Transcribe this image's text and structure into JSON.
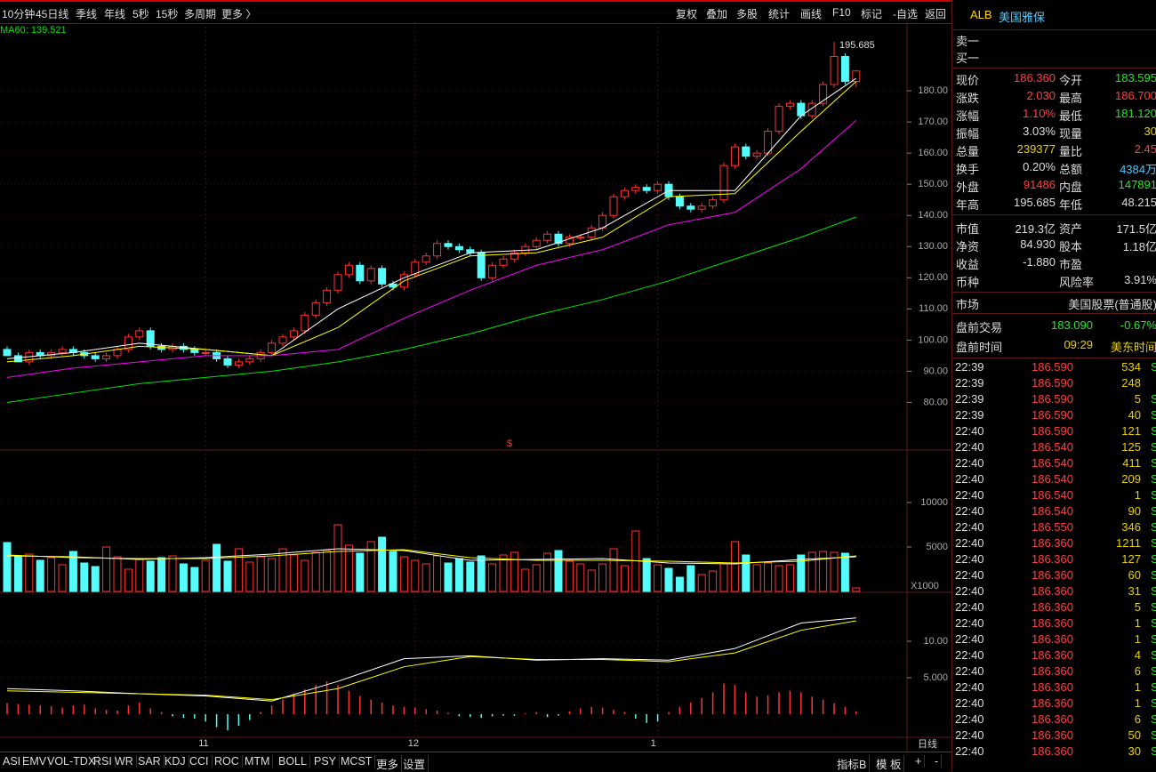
{
  "toolbar": {
    "left": [
      "10分钟",
      "45日线",
      "季线",
      "年线",
      "5秒",
      "15秒",
      "多周期",
      "更多 〉"
    ],
    "right": [
      "复权",
      "叠加",
      "多股",
      "统计",
      "画线",
      "F10",
      "标记",
      "-自选",
      "返回"
    ]
  },
  "bottom_toolbar": {
    "left": [
      "ASI",
      "EMV",
      "VOL-TDX",
      "RSI",
      "WR",
      "SAR",
      "KDJ",
      "CCI",
      "ROC",
      "MTM",
      "BOLL",
      "PSY",
      "MCST",
      "更多",
      "设置"
    ],
    "right": [
      "指标B",
      "模 板",
      "+",
      "-"
    ]
  },
  "period_label": "日线",
  "chart_data": [
    {
      "type": "candlestick",
      "legend": "MA60: 139.521",
      "marker": "$",
      "up_color": "#ff3232",
      "down_color": "#54fcfc",
      "open": [
        97,
        95,
        93,
        96,
        95,
        96,
        97,
        96,
        95,
        94,
        95,
        97,
        101,
        103,
        98,
        97,
        98,
        97,
        96,
        96,
        94,
        92,
        93,
        94,
        96,
        99,
        101,
        103,
        108,
        112,
        116,
        121,
        124,
        119,
        123,
        118,
        117,
        121,
        125,
        127,
        131,
        130,
        129,
        128,
        120,
        124,
        126,
        128,
        130,
        132,
        134,
        131,
        133,
        133,
        136,
        140,
        146,
        148,
        149,
        148,
        150,
        146,
        143,
        142,
        143,
        145,
        156,
        162,
        159,
        160,
        167,
        175,
        176,
        172,
        176,
        182,
        191,
        183
      ],
      "high": [
        98,
        96,
        97,
        97,
        97,
        98,
        98,
        97,
        96,
        96,
        98,
        102,
        104,
        104,
        99,
        99,
        99,
        98,
        97,
        97,
        95,
        94,
        95,
        97,
        100,
        102,
        104,
        109,
        113,
        117,
        122,
        125,
        125,
        124,
        124,
        119,
        122,
        126,
        128,
        132,
        132,
        131,
        130,
        129,
        125,
        127,
        129,
        131,
        133,
        135,
        135,
        134,
        134,
        137,
        141,
        147,
        149,
        150,
        150,
        151,
        151,
        147,
        144,
        144,
        146,
        157,
        163,
        163,
        161,
        168,
        176,
        177,
        177,
        177,
        183,
        195.685,
        192,
        186.7
      ],
      "low": [
        96,
        94,
        92,
        94,
        94,
        95,
        95,
        94,
        93,
        93,
        94,
        96,
        100,
        97,
        96,
        96,
        96,
        95,
        95,
        93,
        91,
        91,
        92,
        93,
        95,
        98,
        100,
        102,
        107,
        111,
        115,
        120,
        118,
        118,
        117,
        116,
        116,
        120,
        124,
        126,
        129,
        128,
        127,
        119,
        119,
        123,
        125,
        127,
        129,
        131,
        130,
        130,
        132,
        132,
        135,
        139,
        145,
        147,
        147,
        147,
        145,
        142,
        141,
        141,
        142,
        144,
        155,
        158,
        158,
        159,
        166,
        174,
        171,
        171,
        175,
        181,
        182,
        181.12
      ],
      "close": [
        95,
        93,
        96,
        95,
        96,
        97,
        96,
        95,
        94,
        95,
        97,
        101,
        103,
        98,
        97,
        98,
        97,
        96,
        96,
        94,
        92,
        93,
        94,
        96,
        99,
        101,
        103,
        108,
        112,
        116,
        121,
        124,
        119,
        123,
        118,
        117,
        121,
        125,
        127,
        131,
        130,
        129,
        128,
        120,
        124,
        126,
        128,
        130,
        132,
        134,
        131,
        133,
        133,
        136,
        140,
        146,
        148,
        149,
        148,
        150,
        146,
        143,
        142,
        143,
        145,
        156,
        162,
        159,
        160,
        167,
        175,
        176,
        172,
        176,
        182,
        191,
        183,
        186.36
      ],
      "ylim": [
        65,
        202
      ],
      "yticks": [
        {
          "value": 80,
          "label": "80.00"
        },
        {
          "value": 90,
          "label": "90.00"
        },
        {
          "value": 100,
          "label": "100.00"
        },
        {
          "value": 110,
          "label": "110.00"
        },
        {
          "value": 120,
          "label": "120.00"
        },
        {
          "value": 130,
          "label": "130.00"
        },
        {
          "value": 140,
          "label": "140.00"
        },
        {
          "value": 150,
          "label": "150.00"
        },
        {
          "value": 160,
          "label": "160.00"
        },
        {
          "value": 170,
          "label": "170.00"
        },
        {
          "value": 180,
          "label": "180.00"
        }
      ],
      "xticks": [
        {
          "value": 18,
          "label": "11"
        },
        {
          "value": 37,
          "label": "12"
        },
        {
          "value": 59,
          "label": "1"
        }
      ],
      "lines": [
        {
          "color": "#ffffff",
          "x": [
            0,
            6,
            12,
            18,
            24,
            30,
            36,
            42,
            48,
            54,
            60,
            66,
            72,
            77
          ],
          "values": [
            94,
            96,
            99,
            97,
            95,
            110,
            120,
            128,
            129,
            136,
            148,
            148,
            172,
            184
          ]
        },
        {
          "color": "#ffff00",
          "x": [
            0,
            6,
            12,
            18,
            24,
            30,
            36,
            42,
            48,
            54,
            60,
            66,
            72,
            77
          ],
          "values": [
            93,
            95,
            98,
            97,
            95,
            104,
            119,
            127,
            128,
            133,
            146,
            147,
            167,
            183
          ]
        },
        {
          "color": "#ff00ff",
          "x": [
            0,
            6,
            12,
            18,
            24,
            30,
            36,
            42,
            48,
            54,
            60,
            66,
            72,
            77
          ],
          "values": [
            88,
            91,
            93,
            95,
            95,
            97,
            107,
            116,
            124,
            129,
            137,
            141,
            155,
            170.5
          ]
        },
        {
          "color": "#00e600",
          "x": [
            0,
            6,
            12,
            18,
            24,
            30,
            36,
            42,
            48,
            54,
            60,
            66,
            72,
            77
          ],
          "values": [
            80,
            83,
            86,
            88,
            90,
            93,
            97,
            102,
            108,
            113,
            119,
            126,
            133,
            139.521
          ]
        }
      ]
    },
    {
      "type": "bar",
      "unit_label": "X1000",
      "values": [
        5500,
        4000,
        4200,
        3500,
        3800,
        3000,
        4500,
        3200,
        2800,
        5000,
        3900,
        2500,
        3600,
        3400,
        3800,
        4000,
        3100,
        2700,
        3500,
        5300,
        3400,
        4800,
        3300,
        3900,
        3700,
        4800,
        4100,
        3500,
        4400,
        4600,
        7500,
        5200,
        4300,
        5600,
        6100,
        4500,
        3900,
        3500,
        3100,
        4000,
        3200,
        3700,
        3300,
        4000,
        3100,
        4100,
        4400,
        2500,
        3000,
        4300,
        4600,
        3400,
        3100,
        2400,
        3100,
        4800,
        2900,
        6800,
        3700,
        3000,
        2600,
        1600,
        2900,
        1900,
        2300,
        3100,
        5600,
        4100,
        3000,
        3200,
        2900,
        3000,
        4100,
        4400,
        4500,
        4400,
        4300,
        400
      ],
      "ylim": [
        0,
        15800
      ],
      "yticks": [
        5000,
        10000
      ],
      "lines": [
        {
          "color": "#ffffff",
          "x": [
            0,
            6,
            12,
            18,
            24,
            30,
            36,
            42,
            48,
            54,
            60,
            66,
            72,
            77
          ],
          "values": [
            4000,
            3900,
            3600,
            3800,
            4200,
            4800,
            4600,
            3500,
            3600,
            3700,
            3200,
            3100,
            3600,
            3900
          ]
        },
        {
          "color": "#ffff00",
          "x": [
            0,
            6,
            12,
            18,
            24,
            30,
            36,
            42,
            48,
            54,
            60,
            66,
            72,
            77
          ],
          "values": [
            4100,
            3800,
            3700,
            3700,
            4000,
            4500,
            4700,
            3800,
            3500,
            3500,
            3400,
            3200,
            3400,
            4000
          ]
        }
      ]
    },
    {
      "type": "macd",
      "pos_color": "#ff3232",
      "neg_color": "#54fcfc",
      "values": [
        1.5,
        1.4,
        1.3,
        1.2,
        1.1,
        0.9,
        1.2,
        1.3,
        0.8,
        0.6,
        0.5,
        1.2,
        1.6,
        0.8,
        0.3,
        -0.3,
        -0.5,
        -0.6,
        -1.0,
        -1.8,
        -2.2,
        -1.6,
        -0.8,
        0.3,
        1.2,
        2.0,
        2.8,
        3.4,
        4.0,
        4.5,
        4.0,
        3.2,
        2.5,
        2.0,
        1.6,
        1.2,
        1.0,
        0.9,
        0.7,
        0.5,
        0.2,
        -0.3,
        -0.4,
        -0.5,
        -0.3,
        -0.2,
        -0.2,
        0.1,
        0.3,
        -0.4,
        -0.2,
        0.4,
        0.8,
        1.0,
        0.9,
        0.6,
        0.3,
        -0.6,
        -1.2,
        -1.0,
        0.3,
        1.0,
        1.6,
        2.2,
        3.0,
        4.2,
        4.0,
        3.0,
        2.4,
        2.6,
        3.0,
        3.2,
        3.0,
        2.4,
        2.0,
        1.5,
        1.0,
        0.4
      ],
      "ylim": [
        -3.05,
        16.46
      ],
      "yticks": [
        {
          "value": 5,
          "label": "5.000"
        },
        {
          "value": 10,
          "label": "10.00"
        }
      ],
      "lines": [
        {
          "color": "#ffffff",
          "x": [
            0,
            6,
            12,
            18,
            24,
            30,
            36,
            42,
            48,
            54,
            60,
            66,
            72,
            77
          ],
          "values": [
            3.5,
            3.2,
            2.8,
            2.5,
            1.8,
            4.5,
            7.6,
            8.0,
            7.4,
            7.6,
            7.4,
            9.0,
            12.5,
            13.2
          ]
        },
        {
          "color": "#ffff00",
          "x": [
            0,
            6,
            12,
            18,
            24,
            30,
            36,
            42,
            48,
            54,
            60,
            66,
            72,
            77
          ],
          "values": [
            3.2,
            3.0,
            2.8,
            2.6,
            2.0,
            3.5,
            6.5,
            7.9,
            7.5,
            7.5,
            7.2,
            8.4,
            11.5,
            12.8
          ]
        }
      ]
    }
  ],
  "quote": {
    "symbol": "ALB",
    "name": "美国雅保",
    "sell": "卖一",
    "buy": "买一",
    "rows": [
      [
        "现价",
        "186.360",
        "今开",
        "183.595"
      ],
      [
        "涨跌",
        "2.030",
        "最高",
        "186.700"
      ],
      [
        "涨幅",
        "1.10%",
        "最低",
        "181.120"
      ],
      [
        "振幅",
        "3.03%",
        "现量",
        "30"
      ],
      [
        "总量",
        "239377",
        "量比",
        "2.45"
      ],
      [
        "换手",
        "0.20%",
        "总额",
        "4384万"
      ],
      [
        "外盘",
        "91486",
        "内盘",
        "147891"
      ],
      [
        "年高",
        "195.685",
        "年低",
        "48.215"
      ]
    ],
    "fundamentals": [
      [
        "市值",
        "219.3亿"
      ],
      [
        "资产",
        "171.5亿"
      ],
      [
        "净资",
        "84.930"
      ],
      [
        "股本",
        "1.18亿"
      ],
      [
        "收益",
        "-1.880"
      ],
      [
        "市盈"
      ],
      [
        "币种"
      ],
      [
        "风险率",
        "3.91%"
      ]
    ],
    "market": [
      "市场",
      "美国股票(普通股)"
    ],
    "premarket": [
      [
        "盘前交易",
        "183.090",
        "-0.67%"
      ],
      [
        "盘前时间",
        "09:29",
        "美东时间"
      ]
    ],
    "ticks": [
      [
        "22:39",
        "186.590",
        "534",
        "S"
      ],
      [
        "22:39",
        "186.590",
        "248"
      ],
      [
        "22:39",
        "186.590",
        "5",
        "S"
      ],
      [
        "22:39",
        "186.590",
        "40",
        "S"
      ],
      [
        "22:40",
        "186.590",
        "121",
        "S"
      ],
      [
        "22:40",
        "186.540",
        "125",
        "S"
      ],
      [
        "22:40",
        "186.540",
        "411",
        "S"
      ],
      [
        "22:40",
        "186.540",
        "209",
        "S"
      ],
      [
        "22:40",
        "186.540",
        "1",
        "S"
      ],
      [
        "22:40",
        "186.540",
        "90",
        "S"
      ],
      [
        "22:40",
        "186.550",
        "346",
        "S"
      ],
      [
        "22:40",
        "186.360",
        "1211",
        "S"
      ],
      [
        "22:40",
        "186.360",
        "127",
        "S"
      ],
      [
        "22:40",
        "186.360",
        "60",
        "S"
      ],
      [
        "22:40",
        "186.360",
        "31",
        "S"
      ],
      [
        "22:40",
        "186.360",
        "5",
        "S"
      ],
      [
        "22:40",
        "186.360",
        "1",
        "S"
      ],
      [
        "22:40",
        "186.360",
        "1",
        "S"
      ],
      [
        "22:40",
        "186.360",
        "4",
        "S"
      ],
      [
        "22:40",
        "186.360",
        "6",
        "S"
      ],
      [
        "22:40",
        "186.360",
        "1",
        "S"
      ],
      [
        "22:40",
        "186.360",
        "1",
        "S"
      ],
      [
        "22:40",
        "186.360",
        "6",
        "S"
      ],
      [
        "22:40",
        "186.360",
        "50",
        "S"
      ],
      [
        "22:40",
        "186.360",
        "30",
        "S"
      ]
    ]
  }
}
